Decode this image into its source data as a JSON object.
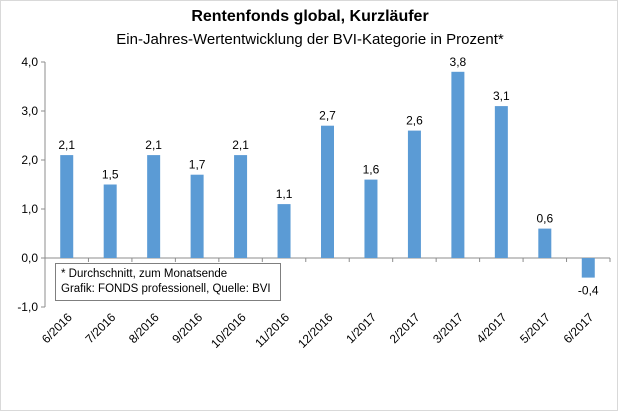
{
  "chart_data": {
    "type": "bar",
    "title": "Rentenfonds global, Kurzläufer",
    "subtitle": "Ein-Jahres-Wertentwicklung der BVI-Kategorie in Prozent*",
    "categories": [
      "6/2016",
      "7/2016",
      "8/2016",
      "9/2016",
      "10/2016",
      "11/2016",
      "12/2016",
      "1/2017",
      "2/2017",
      "3/2017",
      "4/2017",
      "5/2017",
      "6/2017"
    ],
    "values": [
      2.1,
      1.5,
      2.1,
      1.7,
      2.1,
      1.1,
      2.7,
      1.6,
      2.6,
      3.8,
      3.1,
      0.6,
      -0.4
    ],
    "data_labels": [
      "2,1",
      "1,5",
      "2,1",
      "1,7",
      "2,1",
      "1,1",
      "2,7",
      "1,6",
      "2,6",
      "3,8",
      "3,1",
      "0,6",
      "-0,4"
    ],
    "yticks": [
      -1,
      0,
      1,
      2,
      3,
      4
    ],
    "ytick_labels": [
      "-1,0",
      "0,0",
      "1,0",
      "2,0",
      "3,0",
      "4,0"
    ],
    "ylim": [
      -1,
      4
    ],
    "bar_color": "#5b9bd5",
    "grid": false,
    "legend": "none"
  },
  "note": {
    "line1": "* Durchschnitt, zum Monatsende",
    "line2": "Grafik: FONDS professionell, Quelle: BVI"
  }
}
